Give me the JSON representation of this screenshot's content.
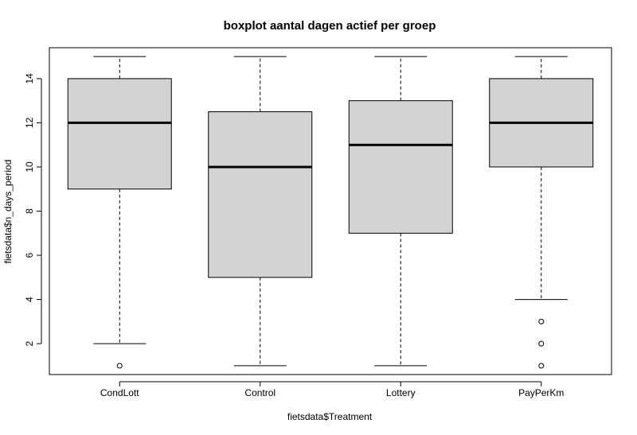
{
  "chart_data": {
    "type": "boxplot",
    "title": "boxplot aantal dagen actief per groep",
    "xlabel": "fietsdata$Treatment",
    "ylabel": "fietsdata$n_days_period",
    "categories": [
      "CondLott",
      "Control",
      "Lottery",
      "PayPerKm"
    ],
    "ylim": [
      0.6,
      15.4
    ],
    "yticks": [
      2,
      4,
      6,
      8,
      10,
      12,
      14
    ],
    "grid": false,
    "legend": "none",
    "box_fill": "#d3d3d3",
    "boxes": [
      {
        "category": "CondLott",
        "whisker_low": 2,
        "q1": 9,
        "median": 12,
        "q3": 14,
        "whisker_high": 15,
        "outliers": [
          1
        ]
      },
      {
        "category": "Control",
        "whisker_low": 1,
        "q1": 5,
        "median": 10,
        "q3": 12.5,
        "whisker_high": 15,
        "outliers": []
      },
      {
        "category": "Lottery",
        "whisker_low": 1,
        "q1": 7,
        "median": 11,
        "q3": 13,
        "whisker_high": 15,
        "outliers": []
      },
      {
        "category": "PayPerKm",
        "whisker_low": 4,
        "q1": 10,
        "median": 12,
        "q3": 14,
        "whisker_high": 15,
        "outliers": [
          1,
          2,
          3
        ]
      }
    ]
  }
}
